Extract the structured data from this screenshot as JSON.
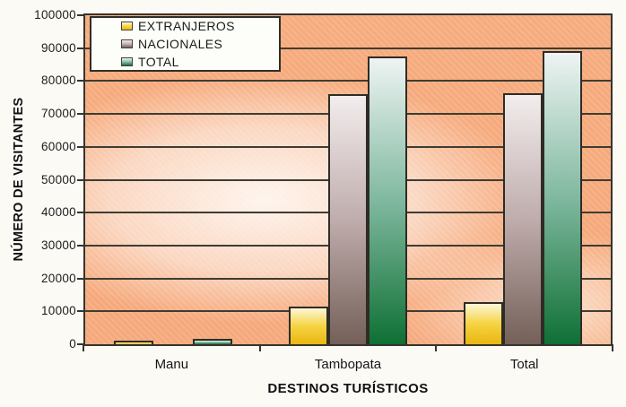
{
  "figure": {
    "kind": "scanned-textbook-bar-chart"
  },
  "chart_data": {
    "type": "bar",
    "title": "",
    "xlabel": "DESTINOS TURÍSTICOS",
    "ylabel": "NÚMERO DE VISITANTES",
    "categories": [
      "Manu",
      "Tambopata",
      "Total"
    ],
    "series": [
      {
        "name": "EXTRANJEROS",
        "values": [
          1200,
          11500,
          12700
        ],
        "gradient": [
          "#fdf7d8",
          "#f5d341",
          "#e9b611"
        ]
      },
      {
        "name": "NACIONALES",
        "values": [
          300,
          76000,
          76300
        ],
        "gradient": [
          "#f3eded",
          "#bfacac",
          "#746058"
        ]
      },
      {
        "name": "TOTAL",
        "values": [
          1500,
          87500,
          89000
        ],
        "gradient": [
          "#eef4f3",
          "#7fb89f",
          "#0f7034"
        ]
      }
    ],
    "ylim": [
      0,
      100000
    ],
    "ytick_step": 10000,
    "ytick_labels": [
      "0",
      "10000",
      "20000",
      "30000",
      "40000",
      "50000",
      "60000",
      "70000",
      "80000",
      "90000",
      "100000"
    ],
    "grid": "horizontal-major",
    "legend_position": "top-left-inside"
  },
  "colors": {
    "page_bg": "#fbfaf5",
    "plot_bg_salmon": "#f6ab7d",
    "plot_bg_highlight": "#fdf0e8",
    "gridline": "#3f3c33",
    "bar_border": "#2e2c25",
    "axis_text": "#1c1c1c",
    "legend_bg": "#fdfdf9"
  }
}
